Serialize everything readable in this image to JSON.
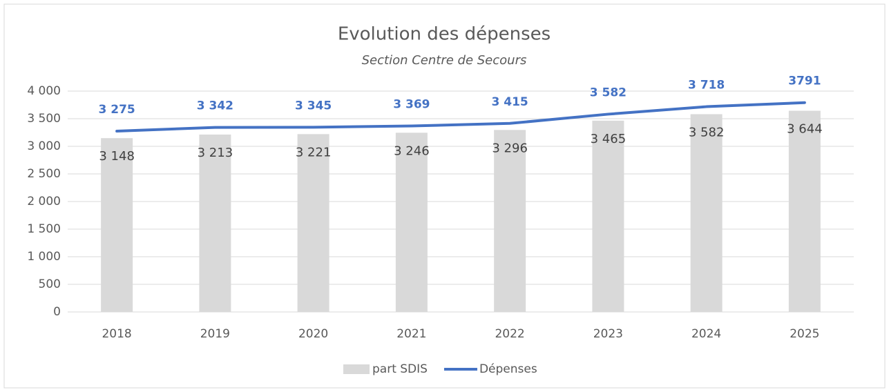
{
  "chart_data": {
    "type": "combo",
    "title": "Evolution des dépenses",
    "subtitle": "Section Centre de Secours",
    "categories": [
      "2018",
      "2019",
      "2020",
      "2021",
      "2022",
      "2023",
      "2024",
      "2025"
    ],
    "series": [
      {
        "name": "part SDIS",
        "type": "bar",
        "color": "#d9d9d9",
        "values": [
          3148,
          3213,
          3221,
          3246,
          3296,
          3465,
          3582,
          3644
        ],
        "value_labels": [
          "3 148",
          "3 213",
          "3 221",
          "3 246",
          "3 296",
          "3 465",
          "3 582",
          "3 644"
        ]
      },
      {
        "name": "Dépenses",
        "type": "line",
        "color": "#4472c4",
        "values": [
          3275,
          3342,
          3345,
          3369,
          3415,
          3582,
          3718,
          3791
        ],
        "value_labels": [
          "3 275",
          "3 342",
          "3 345",
          "3 369",
          "3 415",
          "3 582",
          "3 718",
          "3791"
        ]
      }
    ],
    "ylim": [
      0,
      4000
    ],
    "yticks": [
      0,
      500,
      {
        "value": 1000,
        "label": "1 000"
      },
      {
        "value": 1500,
        "label": "1 500"
      },
      {
        "value": 2000,
        "label": "2 000"
      },
      {
        "value": 2500,
        "label": "2 500"
      },
      {
        "value": 3000,
        "label": "3 000"
      },
      {
        "value": 3500,
        "label": "3 500"
      },
      {
        "value": 4000,
        "label": "4 000"
      }
    ],
    "grid": true,
    "legend": "bottom"
  }
}
